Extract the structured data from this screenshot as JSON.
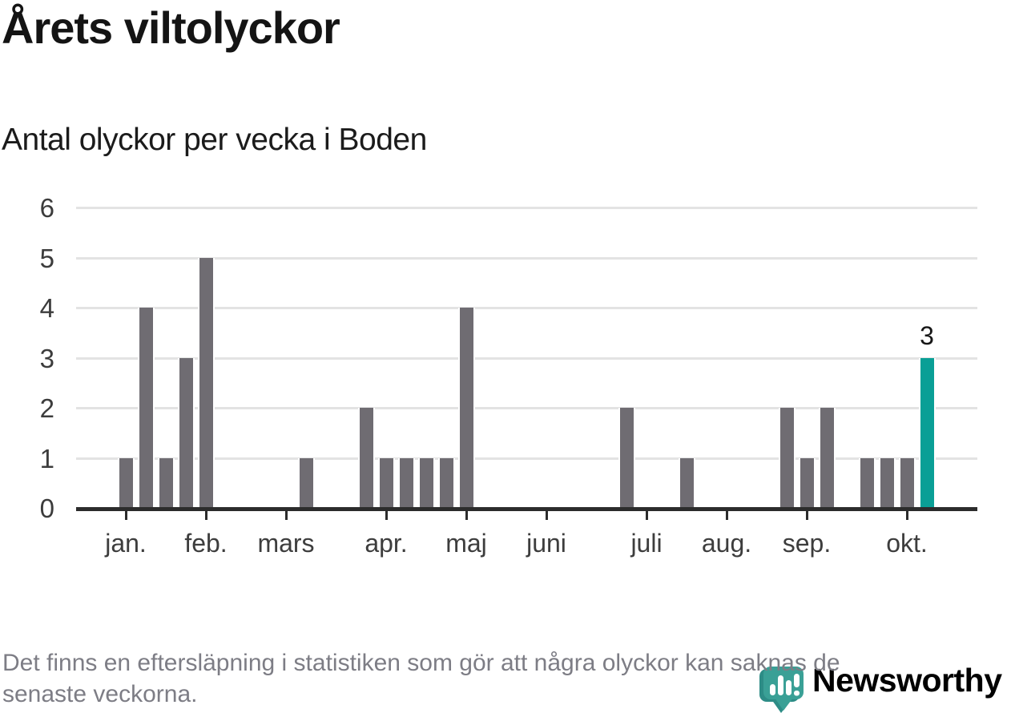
{
  "header": {
    "title": "Årets viltolyckor",
    "subtitle": "Antal olyckor per vecka i Boden"
  },
  "chart_data": {
    "type": "bar",
    "title": "Årets viltolyckor",
    "subtitle": "Antal olyckor per vecka i Boden",
    "x_unit": "vecka",
    "values": [
      1,
      4,
      1,
      3,
      5,
      0,
      0,
      0,
      0,
      1,
      0,
      0,
      2,
      1,
      1,
      1,
      1,
      4,
      0,
      0,
      0,
      0,
      0,
      0,
      0,
      2,
      0,
      0,
      1,
      0,
      0,
      0,
      0,
      2,
      1,
      2,
      0,
      1,
      1,
      1,
      3
    ],
    "highlight_last_bar": true,
    "highlight_value_label": "3",
    "ylim": [
      0,
      6
    ],
    "ytick_labels": [
      "0",
      "1",
      "2",
      "3",
      "4",
      "5",
      "6"
    ],
    "month_ticks": [
      {
        "bar_index": 0,
        "label": "jan."
      },
      {
        "bar_index": 4,
        "label": "feb."
      },
      {
        "bar_index": 8,
        "label": "mars"
      },
      {
        "bar_index": 13,
        "label": "apr."
      },
      {
        "bar_index": 17,
        "label": "maj"
      },
      {
        "bar_index": 21,
        "label": "juni"
      },
      {
        "bar_index": 26,
        "label": "juli"
      },
      {
        "bar_index": 30,
        "label": "aug."
      },
      {
        "bar_index": 34,
        "label": "sep."
      },
      {
        "bar_index": 39,
        "label": "okt."
      }
    ],
    "grid": true,
    "legend": "none",
    "colors": {
      "bar": "#6f6c72",
      "highlight": "#0a9f96",
      "gridline": "#e3e3e3",
      "axis": "#2c2c2c"
    }
  },
  "footer": {
    "note_lines": [
      "Det finns en eftersläpning i statistiken som gör att några olyckor kan saknas de",
      "senaste veckorna."
    ]
  },
  "branding": {
    "name": "Newsworthy",
    "logo_color": "#38a69d",
    "logo_icon": "newsworthy-speech-bubble-chart-icon"
  }
}
